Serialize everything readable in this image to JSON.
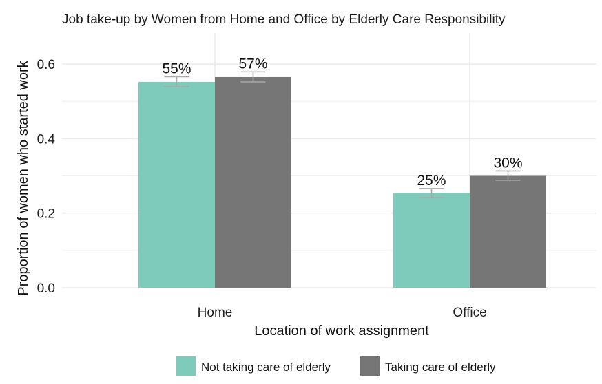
{
  "chart_data": {
    "type": "bar",
    "title": "Job take-up by Women from Home and Office by Elderly Care Responsibility",
    "xlabel": "Location of work assignment",
    "ylabel": "Proportion of women who started work",
    "categories": [
      "Home",
      "Office"
    ],
    "ylim": [
      0,
      0.66
    ],
    "yticks": [
      0.0,
      0.2,
      0.4,
      0.6
    ],
    "ytick_labels": [
      "0.0",
      "0.2",
      "0.4",
      "0.6"
    ],
    "series": [
      {
        "name": "Not taking care of elderly",
        "color": "#7ecbbb",
        "values": [
          0.552,
          0.254
        ],
        "error_low": [
          0.539,
          0.242
        ],
        "error_high": [
          0.566,
          0.266
        ],
        "labels": [
          "55%",
          "25%"
        ]
      },
      {
        "name": "Taking care of elderly",
        "color": "#767676",
        "values": [
          0.565,
          0.3
        ],
        "error_low": [
          0.552,
          0.288
        ],
        "error_high": [
          0.579,
          0.313
        ],
        "labels": [
          "57%",
          "30%"
        ]
      }
    ],
    "grid": true,
    "legend_position": "bottom",
    "colors": {
      "gridline": "#ebebeb",
      "errorbar": "#a9a9a9"
    }
  }
}
